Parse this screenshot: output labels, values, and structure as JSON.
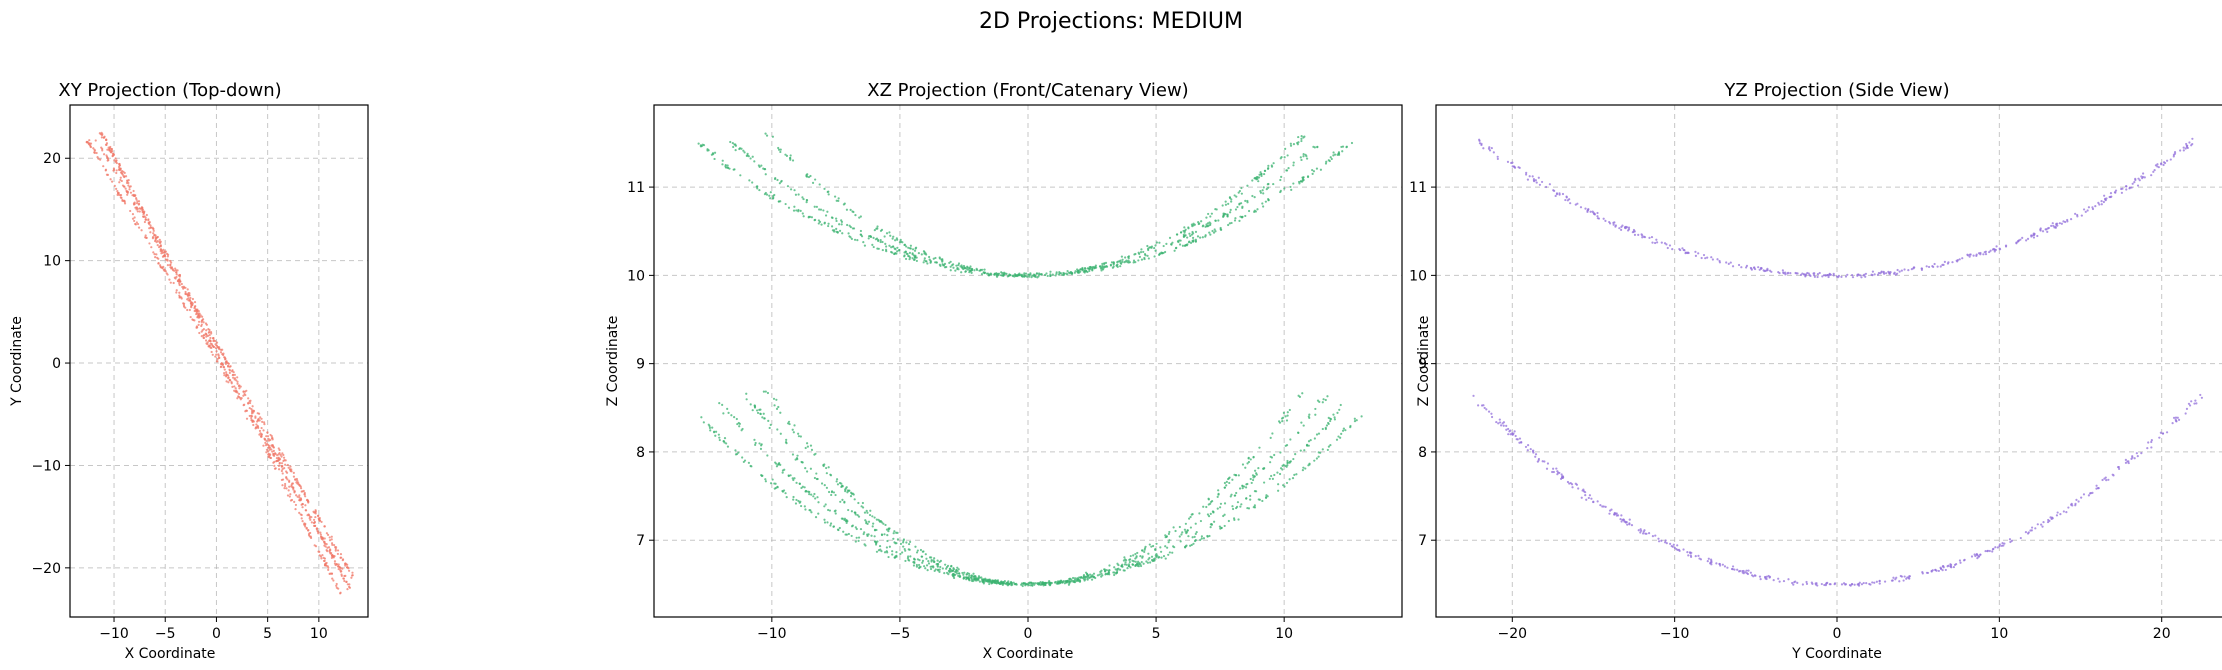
{
  "figure": {
    "suptitle": "2D Projections: MEDIUM"
  },
  "chart_data": [
    {
      "type": "scatter",
      "title": "XY Projection (Top-down)",
      "xlabel": "X Coordinate",
      "ylabel": "Y Coordinate",
      "xlim": [
        -14.3,
        14.8
      ],
      "ylim": [
        -24.8,
        25.2
      ],
      "xticks": [
        -10,
        -5,
        0,
        5,
        10
      ],
      "yticks": [
        -20,
        -10,
        0,
        10,
        20
      ],
      "grid": true,
      "color": "#f07a6a",
      "series": [
        {
          "x": [
            -12.6,
            13.0
          ],
          "y": [
            21.8,
            -21.6
          ],
          "jitter": 0.9
        },
        {
          "x": [
            -12.0,
            13.4
          ],
          "y": [
            22.3,
            -21.0
          ],
          "jitter": 0.9
        },
        {
          "x": [
            -11.4,
            13.0
          ],
          "y": [
            22.6,
            -22.0
          ],
          "jitter": 0.9
        },
        {
          "x": [
            -11.0,
            12.2
          ],
          "y": [
            22.2,
            -22.6
          ],
          "jitter": 0.9
        }
      ]
    },
    {
      "type": "scatter",
      "title": "XZ Projection (Front/Catenary View)",
      "xlabel": "X Coordinate",
      "ylabel": "Z Coordinate",
      "xlim": [
        -14.6,
        14.6
      ],
      "ylim": [
        6.13,
        11.93
      ],
      "xticks": [
        -10,
        -5,
        0,
        5,
        10
      ],
      "yticks": [
        7,
        8,
        9,
        10,
        11
      ],
      "grid": true,
      "color": "#3cb371",
      "series": [
        {
          "x_range": [
            -12.9,
            12.6
          ],
          "base": 10.0,
          "end": 11.5
        },
        {
          "x_range": [
            -11.5,
            11.4
          ],
          "base": 10.0,
          "end": 11.5
        },
        {
          "x_range": [
            -10.2,
            10.8
          ],
          "base": 10.0,
          "end": 11.6
        },
        {
          "x_range": [
            -13.0,
            13.1
          ],
          "base": 6.5,
          "end": 8.45
        },
        {
          "x_range": [
            -12.0,
            12.4
          ],
          "base": 6.5,
          "end": 8.55
        },
        {
          "x_range": [
            -11.0,
            11.7
          ],
          "base": 6.5,
          "end": 8.65
        },
        {
          "x_range": [
            -10.2,
            10.8
          ],
          "base": 6.5,
          "end": 8.7
        }
      ]
    },
    {
      "type": "scatter",
      "title": "YZ Projection (Side View)",
      "xlabel": "Y Coordinate",
      "ylabel": "Z Coordinate",
      "xlim": [
        -24.7,
        24.7
      ],
      "ylim": [
        6.13,
        11.93
      ],
      "xticks": [
        -20,
        -10,
        0,
        10,
        20
      ],
      "yticks": [
        7,
        8,
        9,
        10,
        11
      ],
      "grid": true,
      "color": "#9370db",
      "series": [
        {
          "x_range": [
            -22.3,
            22.2
          ],
          "base": 10.0,
          "end": 11.55
        },
        {
          "x_range": [
            -22.5,
            22.4
          ],
          "base": 6.5,
          "end": 8.65
        }
      ]
    }
  ]
}
